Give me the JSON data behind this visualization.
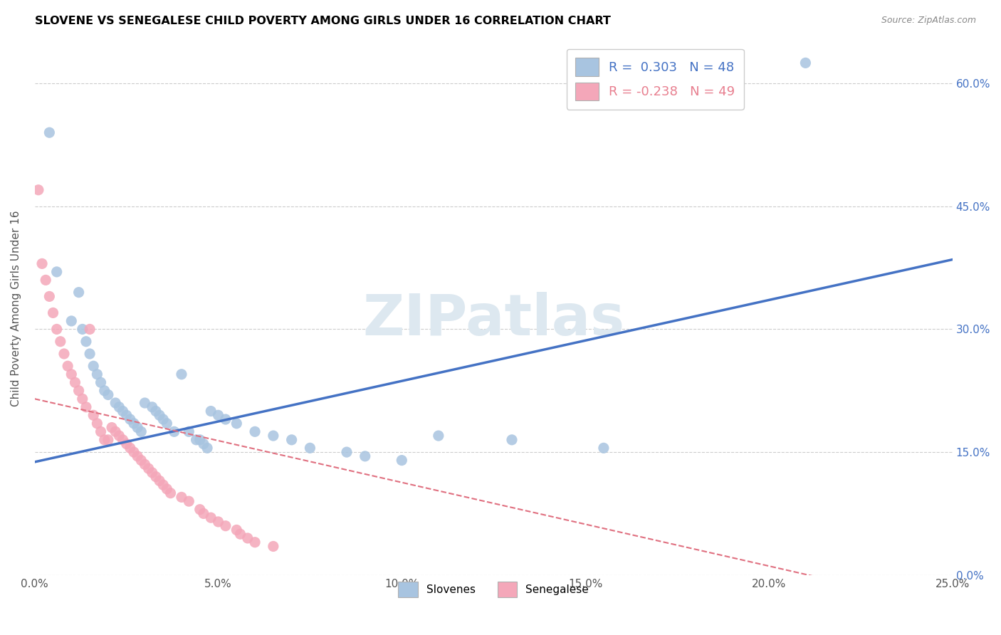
{
  "title": "SLOVENE VS SENEGALESE CHILD POVERTY AMONG GIRLS UNDER 16 CORRELATION CHART",
  "source": "Source: ZipAtlas.com",
  "ylabel": "Child Poverty Among Girls Under 16",
  "xlabel_ticks": [
    "0.0%",
    "5.0%",
    "10.0%",
    "15.0%",
    "20.0%",
    "25.0%"
  ],
  "ylabel_ticks": [
    "0.0%",
    "15.0%",
    "30.0%",
    "45.0%",
    "60.0%"
  ],
  "xlim": [
    0.0,
    0.25
  ],
  "ylim": [
    -0.02,
    0.65
  ],
  "ylim_plot": [
    0.0,
    0.65
  ],
  "watermark": "ZIPatlas",
  "legend_blue_label": "R =  0.303   N = 48",
  "legend_pink_label": "R = -0.238   N = 49",
  "legend_bottom_blue": "Slovenes",
  "legend_bottom_pink": "Senegalese",
  "blue_color": "#a8c4e0",
  "pink_color": "#f4a7b9",
  "blue_line_color": "#4472c4",
  "pink_line_color": "#e07080",
  "blue_dots": [
    [
      0.004,
      0.54
    ],
    [
      0.006,
      0.37
    ],
    [
      0.01,
      0.31
    ],
    [
      0.012,
      0.345
    ],
    [
      0.013,
      0.3
    ],
    [
      0.014,
      0.285
    ],
    [
      0.015,
      0.27
    ],
    [
      0.016,
      0.255
    ],
    [
      0.017,
      0.245
    ],
    [
      0.018,
      0.235
    ],
    [
      0.019,
      0.225
    ],
    [
      0.02,
      0.22
    ],
    [
      0.022,
      0.21
    ],
    [
      0.023,
      0.205
    ],
    [
      0.024,
      0.2
    ],
    [
      0.025,
      0.195
    ],
    [
      0.026,
      0.19
    ],
    [
      0.027,
      0.185
    ],
    [
      0.028,
      0.18
    ],
    [
      0.029,
      0.175
    ],
    [
      0.03,
      0.21
    ],
    [
      0.032,
      0.205
    ],
    [
      0.033,
      0.2
    ],
    [
      0.034,
      0.195
    ],
    [
      0.035,
      0.19
    ],
    [
      0.036,
      0.185
    ],
    [
      0.038,
      0.175
    ],
    [
      0.04,
      0.245
    ],
    [
      0.042,
      0.175
    ],
    [
      0.044,
      0.165
    ],
    [
      0.045,
      0.165
    ],
    [
      0.046,
      0.16
    ],
    [
      0.047,
      0.155
    ],
    [
      0.048,
      0.2
    ],
    [
      0.05,
      0.195
    ],
    [
      0.052,
      0.19
    ],
    [
      0.055,
      0.185
    ],
    [
      0.06,
      0.175
    ],
    [
      0.065,
      0.17
    ],
    [
      0.07,
      0.165
    ],
    [
      0.075,
      0.155
    ],
    [
      0.085,
      0.15
    ],
    [
      0.09,
      0.145
    ],
    [
      0.1,
      0.14
    ],
    [
      0.11,
      0.17
    ],
    [
      0.13,
      0.165
    ],
    [
      0.155,
      0.155
    ],
    [
      0.21,
      0.625
    ]
  ],
  "pink_dots": [
    [
      0.001,
      0.47
    ],
    [
      0.002,
      0.38
    ],
    [
      0.003,
      0.36
    ],
    [
      0.004,
      0.34
    ],
    [
      0.005,
      0.32
    ],
    [
      0.006,
      0.3
    ],
    [
      0.007,
      0.285
    ],
    [
      0.008,
      0.27
    ],
    [
      0.009,
      0.255
    ],
    [
      0.01,
      0.245
    ],
    [
      0.011,
      0.235
    ],
    [
      0.012,
      0.225
    ],
    [
      0.013,
      0.215
    ],
    [
      0.014,
      0.205
    ],
    [
      0.015,
      0.3
    ],
    [
      0.016,
      0.195
    ],
    [
      0.017,
      0.185
    ],
    [
      0.018,
      0.175
    ],
    [
      0.019,
      0.165
    ],
    [
      0.02,
      0.165
    ],
    [
      0.021,
      0.18
    ],
    [
      0.022,
      0.175
    ],
    [
      0.023,
      0.17
    ],
    [
      0.024,
      0.165
    ],
    [
      0.025,
      0.16
    ],
    [
      0.026,
      0.155
    ],
    [
      0.027,
      0.15
    ],
    [
      0.028,
      0.145
    ],
    [
      0.029,
      0.14
    ],
    [
      0.03,
      0.135
    ],
    [
      0.031,
      0.13
    ],
    [
      0.032,
      0.125
    ],
    [
      0.033,
      0.12
    ],
    [
      0.034,
      0.115
    ],
    [
      0.035,
      0.11
    ],
    [
      0.036,
      0.105
    ],
    [
      0.037,
      0.1
    ],
    [
      0.04,
      0.095
    ],
    [
      0.042,
      0.09
    ],
    [
      0.045,
      0.08
    ],
    [
      0.046,
      0.075
    ],
    [
      0.048,
      0.07
    ],
    [
      0.05,
      0.065
    ],
    [
      0.052,
      0.06
    ],
    [
      0.055,
      0.055
    ],
    [
      0.056,
      0.05
    ],
    [
      0.058,
      0.045
    ],
    [
      0.06,
      0.04
    ],
    [
      0.065,
      0.035
    ]
  ],
  "blue_trendline": [
    [
      0.0,
      0.138
    ],
    [
      0.25,
      0.385
    ]
  ],
  "pink_trendline": [
    [
      0.0,
      0.215
    ],
    [
      0.25,
      -0.04
    ]
  ]
}
